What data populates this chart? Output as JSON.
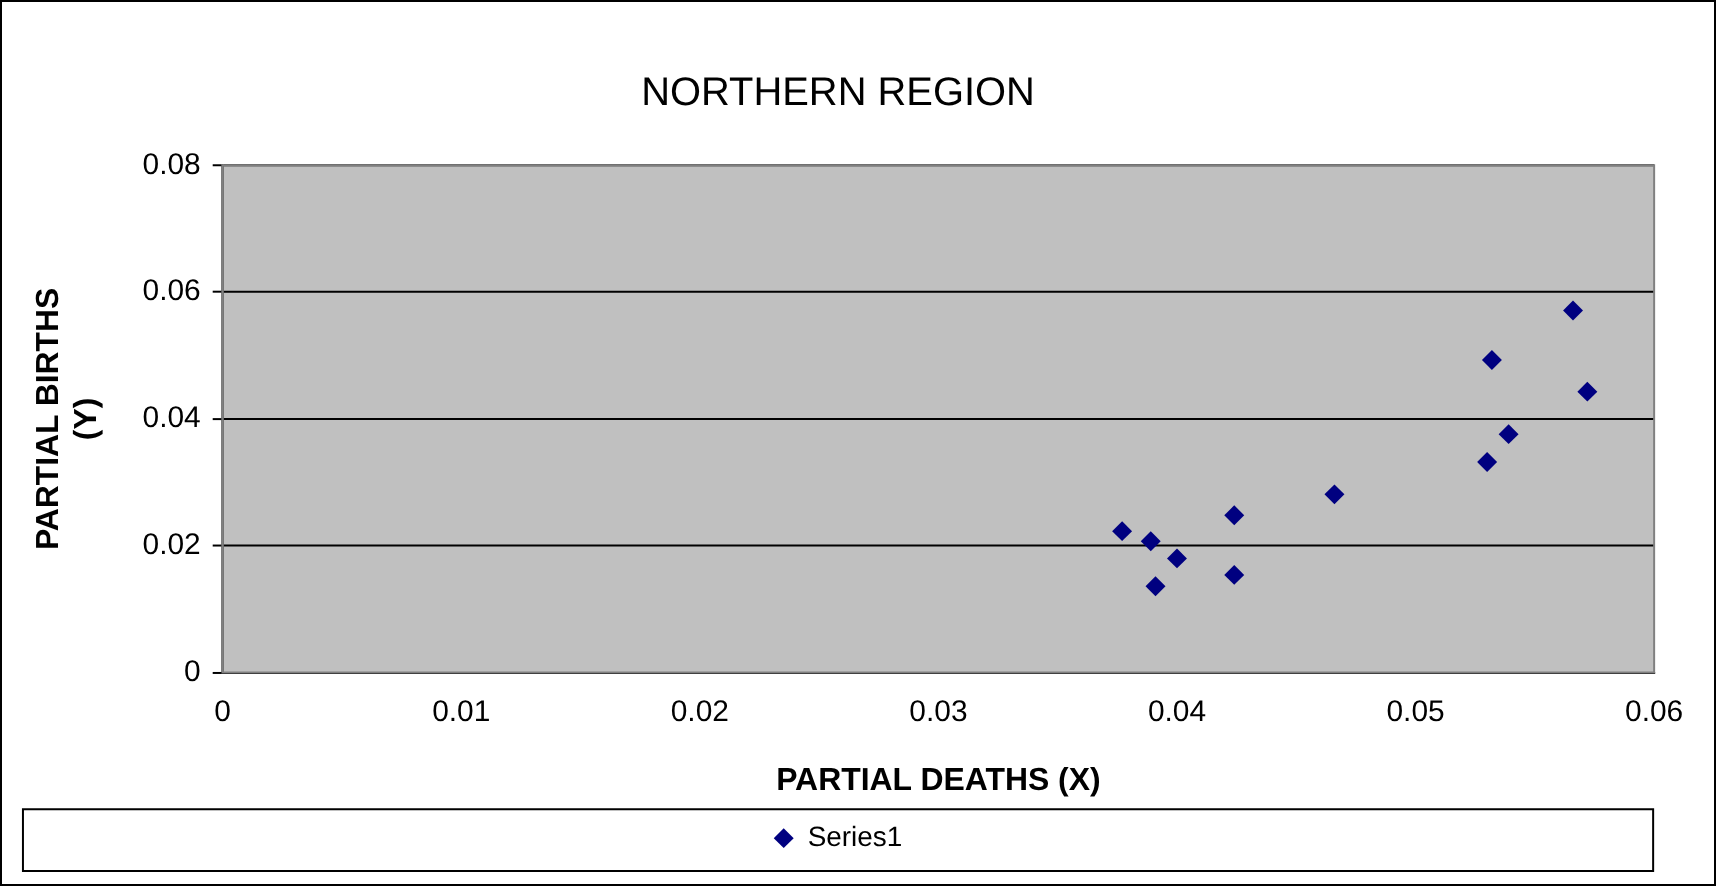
{
  "chart_data": {
    "type": "scatter",
    "title": "NORTHERN REGION",
    "xlabel": "PARTIAL DEATHS (X)",
    "ylabel": "PARTIAL BIRTHS (Y)",
    "x": [
      0.0377,
      0.0389,
      0.0391,
      0.04,
      0.0424,
      0.0424,
      0.0466,
      0.053,
      0.0532,
      0.0539,
      0.0566,
      0.0572
    ],
    "series": [
      {
        "name": "Series1",
        "color": "#000080",
        "values": [
          0.0223,
          0.0207,
          0.0136,
          0.018,
          0.0248,
          0.0154,
          0.0281,
          0.0332,
          0.0493,
          0.0376,
          0.0571,
          0.0443
        ]
      }
    ],
    "xlim": [
      0,
      0.06
    ],
    "xticks": [
      0,
      0.01,
      0.02,
      0.03,
      0.04,
      0.05,
      0.06
    ],
    "ylim": [
      0,
      0.08
    ],
    "yticks": [
      0,
      0.02,
      0.04,
      0.06,
      0.08
    ],
    "grid": "y",
    "legend": "bottom",
    "marker": "diamond"
  }
}
